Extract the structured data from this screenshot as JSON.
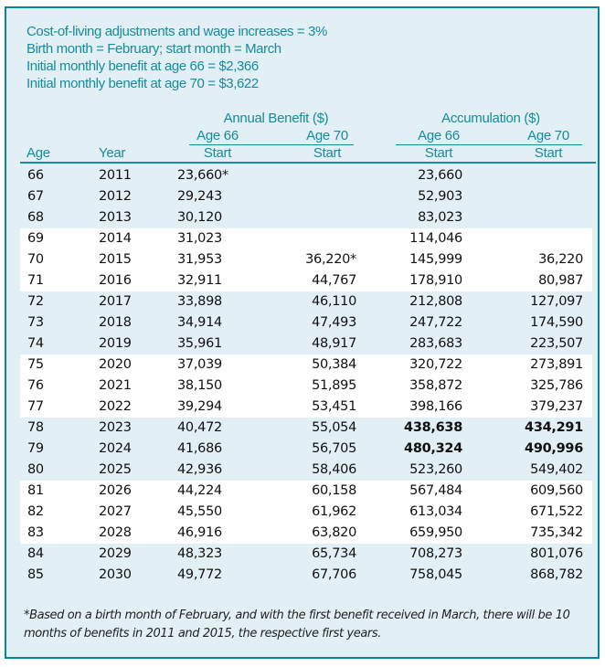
{
  "notes": [
    "Cost-of-living adjustments and wage increases = 3%",
    "Birth month = February; start month = March",
    "Initial monthly benefit at age 66 = $2,366",
    "Initial monthly benefit at age 70 = $3,622"
  ],
  "headers": {
    "annual": "Annual Benefit ($)",
    "accum": "Accumulation ($)",
    "age66": "Age 66",
    "age70": "Age 70",
    "start": "Start",
    "age": "Age",
    "year": "Year"
  },
  "rows": [
    {
      "age": "66",
      "year": "2011",
      "a66": "23,660*",
      "a70": "",
      "c66": "23,660",
      "c70": ""
    },
    {
      "age": "67",
      "year": "2012",
      "a66": "29,243",
      "a70": "",
      "c66": "52,903",
      "c70": ""
    },
    {
      "age": "68",
      "year": "2013",
      "a66": "30,120",
      "a70": "",
      "c66": "83,023",
      "c70": ""
    },
    {
      "age": "69",
      "year": "2014",
      "a66": "31,023",
      "a70": "",
      "c66": "114,046",
      "c70": ""
    },
    {
      "age": "70",
      "year": "2015",
      "a66": "31,953",
      "a70": "36,220*",
      "c66": "145,999",
      "c70": "36,220"
    },
    {
      "age": "71",
      "year": "2016",
      "a66": "32,911",
      "a70": "44,767",
      "c66": "178,910",
      "c70": "80,987"
    },
    {
      "age": "72",
      "year": "2017",
      "a66": "33,898",
      "a70": "46,110",
      "c66": "212,808",
      "c70": "127,097"
    },
    {
      "age": "73",
      "year": "2018",
      "a66": "34,914",
      "a70": "47,493",
      "c66": "247,722",
      "c70": "174,590"
    },
    {
      "age": "74",
      "year": "2019",
      "a66": "35,961",
      "a70": "48,917",
      "c66": "283,683",
      "c70": "223,507"
    },
    {
      "age": "75",
      "year": "2020",
      "a66": "37,039",
      "a70": "50,384",
      "c66": "320,722",
      "c70": "273,891"
    },
    {
      "age": "76",
      "year": "2021",
      "a66": "38,150",
      "a70": "51,895",
      "c66": "358,872",
      "c70": "325,786"
    },
    {
      "age": "77",
      "year": "2022",
      "a66": "39,294",
      "a70": "53,451",
      "c66": "398,166",
      "c70": "379,237"
    },
    {
      "age": "78",
      "year": "2023",
      "a66": "40,472",
      "a70": "55,054",
      "c66": "438,638",
      "c70": "434,291",
      "bold": true
    },
    {
      "age": "79",
      "year": "2024",
      "a66": "41,686",
      "a70": "56,705",
      "c66": "480,324",
      "c70": "490,996",
      "bold": true
    },
    {
      "age": "80",
      "year": "2025",
      "a66": "42,936",
      "a70": "58,406",
      "c66": "523,260",
      "c70": "549,402"
    },
    {
      "age": "81",
      "year": "2026",
      "a66": "44,224",
      "a70": "60,158",
      "c66": "567,484",
      "c70": "609,560"
    },
    {
      "age": "82",
      "year": "2027",
      "a66": "45,550",
      "a70": "61,962",
      "c66": "613,034",
      "c70": "671,522"
    },
    {
      "age": "83",
      "year": "2028",
      "a66": "46,916",
      "a70": "63,820",
      "c66": "659,950",
      "c70": "735,342"
    },
    {
      "age": "84",
      "year": "2029",
      "a66": "48,323",
      "a70": "65,734",
      "c66": "708,273",
      "c70": "801,076"
    },
    {
      "age": "85",
      "year": "2030",
      "a66": "49,772",
      "a70": "67,706",
      "c66": "758,045",
      "c70": "868,782"
    }
  ],
  "footnote": "*Based on a birth month of February, and with the first benefit received in March, there will be 10 months of benefits in 2011 and 2015, the respective first years."
}
